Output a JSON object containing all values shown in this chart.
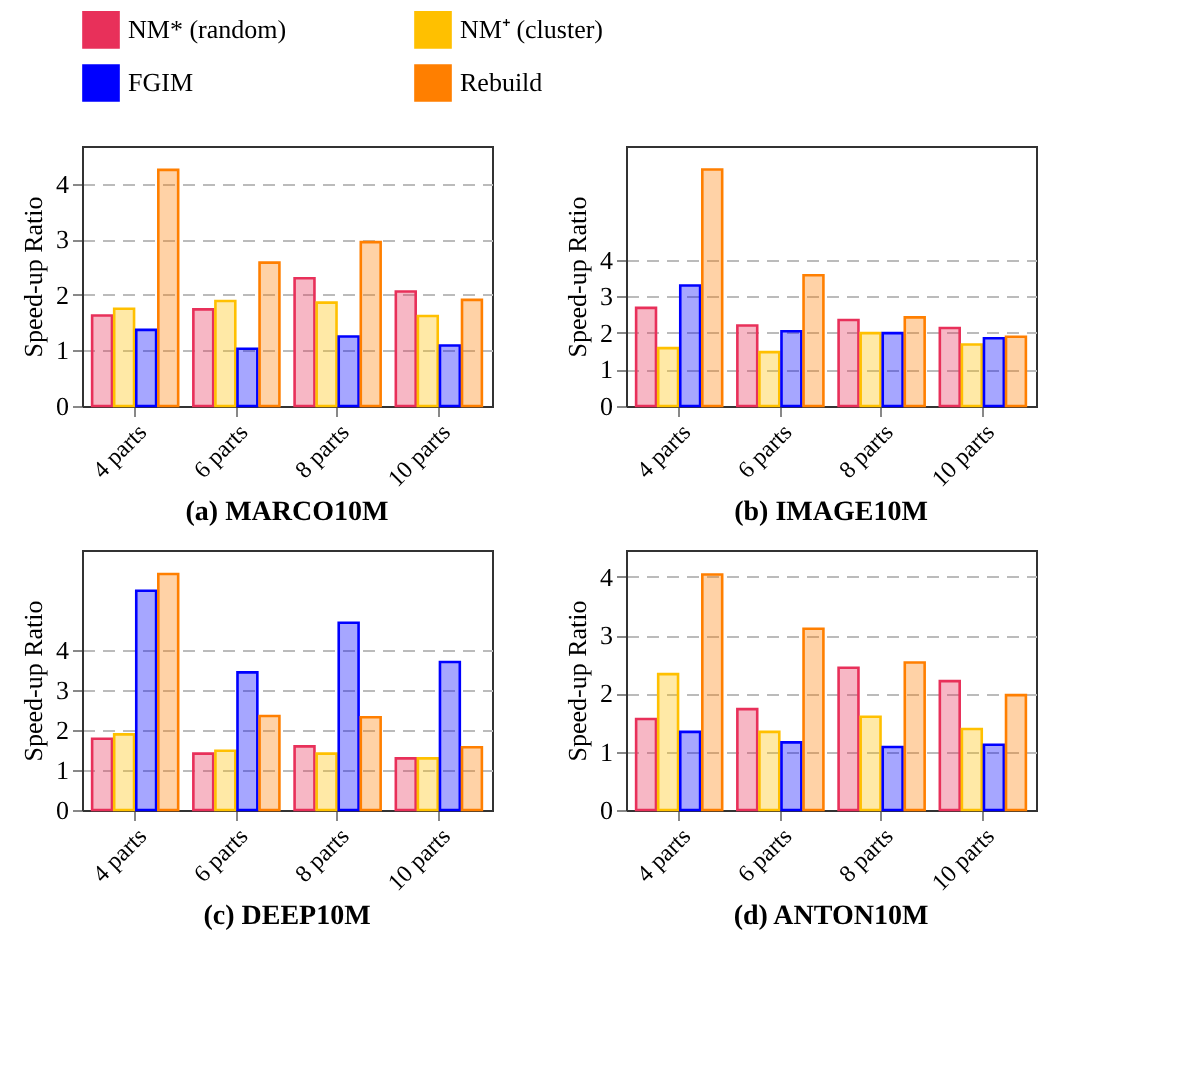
{
  "chart_data": [
    {
      "type": "bar",
      "title": "(a) MARCO10M",
      "ylabel": "Speed-up Ratio",
      "categories": [
        "4 parts",
        "6 parts",
        "8 parts",
        "10 parts"
      ],
      "series": [
        {
          "name": "NM* (random)",
          "color": "#e8305a",
          "values": [
            1.63,
            1.74,
            2.3,
            2.06
          ]
        },
        {
          "name": "NM⁺ (cluster)",
          "color": "#ffc000",
          "values": [
            1.75,
            1.89,
            1.86,
            1.62
          ]
        },
        {
          "name": "FGIM",
          "color": "#0000ff",
          "values": [
            1.37,
            1.03,
            1.25,
            1.09
          ]
        },
        {
          "name": "Rebuild",
          "color": "#ff7f00",
          "values": [
            4.25,
            2.58,
            2.95,
            1.91
          ]
        }
      ],
      "ylim": [
        0,
        4.68
      ],
      "yticks": [
        0,
        1,
        2,
        3,
        4
      ],
      "grid": "y",
      "line_style": "dashed",
      "legend": "top"
    },
    {
      "type": "bar",
      "title": "(b) IMAGE10M",
      "ylabel": "Speed-up Ratio",
      "categories": [
        "4 parts",
        "6 parts",
        "8 parts",
        "10 parts"
      ],
      "series": [
        {
          "name": "NM* (random)",
          "color": "#e8305a",
          "values": [
            2.68,
            2.2,
            2.35,
            2.13
          ]
        },
        {
          "name": "NM⁺ (cluster)",
          "color": "#ffc000",
          "values": [
            1.58,
            1.47,
            1.99,
            1.68
          ]
        },
        {
          "name": "FGIM",
          "color": "#0000ff",
          "values": [
            3.29,
            2.04,
            1.99,
            1.85
          ]
        },
        {
          "name": "Rebuild",
          "color": "#ff7f00",
          "values": [
            6.46,
            3.57,
            2.42,
            1.89
          ]
        }
      ],
      "ylim": [
        0,
        7.1
      ],
      "yticks": [
        0,
        1,
        2,
        3,
        4
      ],
      "grid": "y",
      "line_style": "dashed",
      "legend": "top"
    },
    {
      "type": "bar",
      "title": "(c) DEEP10M",
      "ylabel": "Speed-up Ratio",
      "categories": [
        "4 parts",
        "6 parts",
        "8 parts",
        "10 parts"
      ],
      "series": [
        {
          "name": "NM* (random)",
          "color": "#e8305a",
          "values": [
            1.78,
            1.41,
            1.59,
            1.29
          ]
        },
        {
          "name": "NM⁺ (cluster)",
          "color": "#ffc000",
          "values": [
            1.89,
            1.48,
            1.41,
            1.29
          ]
        },
        {
          "name": "FGIM",
          "color": "#0000ff",
          "values": [
            5.48,
            3.44,
            4.68,
            3.7
          ]
        },
        {
          "name": "Rebuild",
          "color": "#ff7f00",
          "values": [
            5.9,
            2.35,
            2.32,
            1.57
          ]
        }
      ],
      "ylim": [
        0,
        6.5
      ],
      "yticks": [
        0,
        1,
        2,
        3,
        4
      ],
      "grid": "y",
      "line_style": "dashed",
      "legend": "top"
    },
    {
      "type": "bar",
      "title": "(d) ANTON10M",
      "ylabel": "Speed-up Ratio",
      "categories": [
        "4 parts",
        "6 parts",
        "8 parts",
        "10 parts"
      ],
      "series": [
        {
          "name": "NM* (random)",
          "color": "#e8305a",
          "values": [
            1.56,
            1.73,
            2.44,
            2.21
          ]
        },
        {
          "name": "NM⁺ (cluster)",
          "color": "#ffc000",
          "values": [
            2.33,
            1.34,
            1.6,
            1.39
          ]
        },
        {
          "name": "FGIM",
          "color": "#0000ff",
          "values": [
            1.34,
            1.16,
            1.08,
            1.12
          ]
        },
        {
          "name": "Rebuild",
          "color": "#ff7f00",
          "values": [
            4.04,
            3.11,
            2.53,
            1.97
          ]
        }
      ],
      "ylim": [
        0,
        4.46
      ],
      "yticks": [
        0,
        1,
        2,
        3,
        4
      ],
      "grid": "y",
      "line_style": "dashed",
      "legend": "top"
    }
  ]
}
